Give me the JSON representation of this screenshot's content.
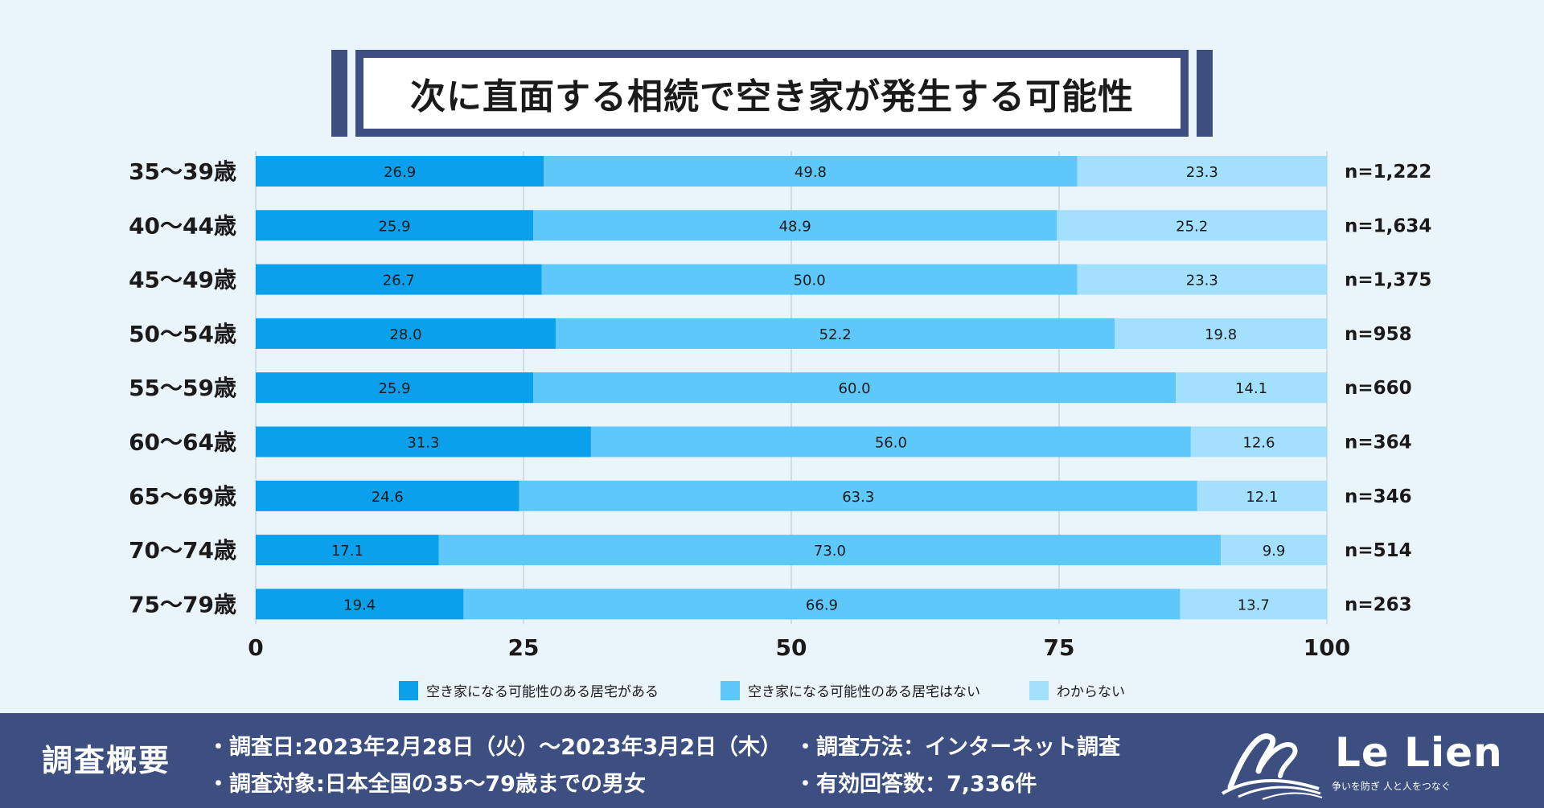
{
  "title": "次に直面する相続で空き家が発生する可能性",
  "chart_data": {
    "type": "bar",
    "orientation": "horizontal",
    "stacked": true,
    "categories": [
      "35～39歳",
      "40～44歳",
      "45～49歳",
      "50～54歳",
      "55～59歳",
      "60～64歳",
      "65～69歳",
      "70～74歳",
      "75～79歳"
    ],
    "n_labels": [
      "n=1,222",
      "n=1,634",
      "n=1,375",
      "n=958",
      "n=660",
      "n=364",
      "n=346",
      "n=514",
      "n=263"
    ],
    "series": [
      {
        "name": "空き家になる可能性のある居宅がある",
        "color": "#0aa0ec",
        "values": [
          26.9,
          25.9,
          26.7,
          28.0,
          25.9,
          31.3,
          24.6,
          17.1,
          19.4
        ]
      },
      {
        "name": "空き家になる可能性のある居宅はない",
        "color": "#5ec8fa",
        "values": [
          49.8,
          48.9,
          50.0,
          52.2,
          60.0,
          56.0,
          63.3,
          73.0,
          66.9
        ]
      },
      {
        "name": "わからない",
        "color": "#a3e0fd",
        "values": [
          23.3,
          25.2,
          23.3,
          19.8,
          14.1,
          12.6,
          12.1,
          9.9,
          13.7
        ]
      }
    ],
    "x_ticks": [
      "0",
      "25",
      "50",
      "75",
      "100"
    ],
    "xlim": [
      0,
      100
    ],
    "grid": true,
    "legend": "bottom"
  },
  "footer": {
    "label": "調査概要",
    "date": "・調査日:2023年2月28日（火）～2023年3月2日（木）",
    "target": "・調査対象:日本全国の35～79歳までの男女",
    "method": "・調査方法：インターネット調査",
    "count": "・有効回答数：7,336件"
  },
  "logo": {
    "name": "Le Lien",
    "tagline": "争いを防ぎ 人と人をつなぐ"
  }
}
